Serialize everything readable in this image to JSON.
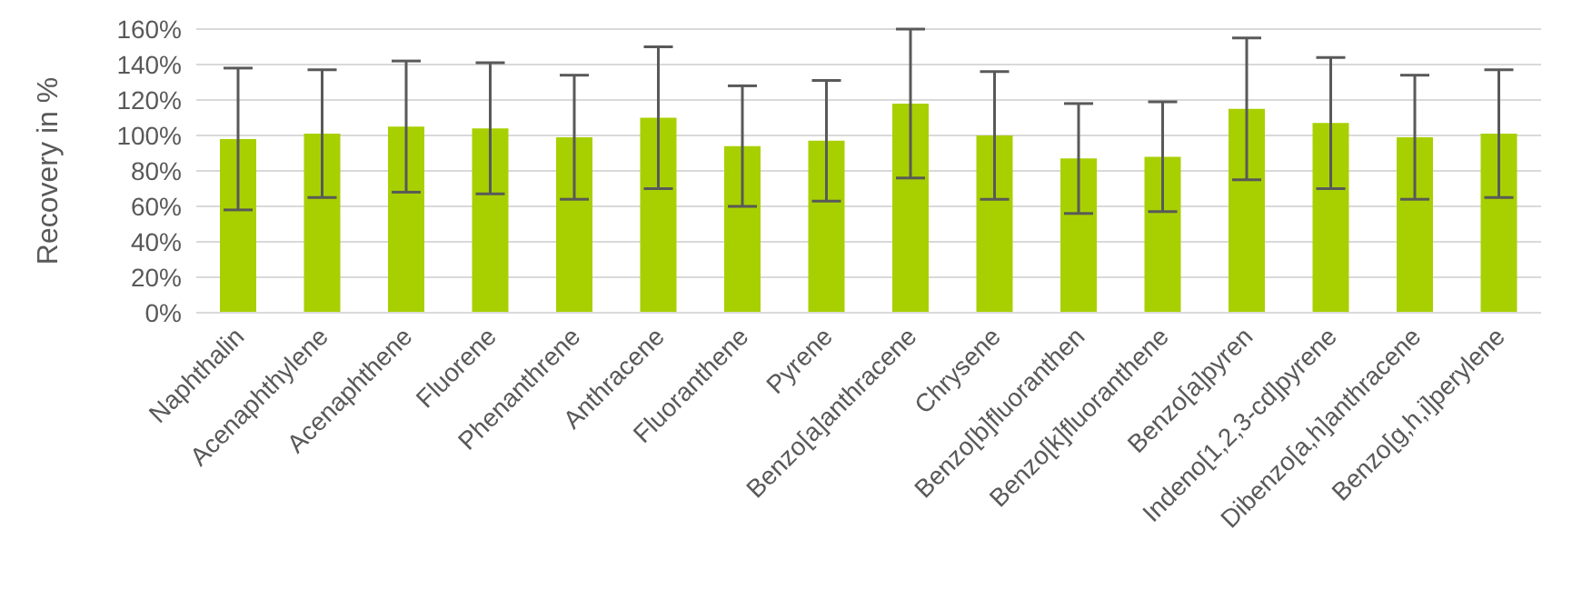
{
  "chart_data": {
    "type": "bar",
    "ylabel": "Recovery in %",
    "categories": [
      "Naphthalin",
      "Acenaphthylene",
      "Acenaphthene",
      "Fluorene",
      "Phenanthrene",
      "Anthracene",
      "Fluoranthene",
      "Pyrene",
      "Benzo[a]anthracene",
      "Chrysene",
      "Benzo[b]fluoranthen",
      "Benzo[k]fluoranthene",
      "Benzo[a]pyren",
      "Indeno[1,2,3-cd]pyrene",
      "Dibenzo[a,h]anthracene",
      "Benzo[g,h,i]perylene"
    ],
    "values": [
      98,
      101,
      105,
      104,
      99,
      110,
      94,
      97,
      118,
      100,
      87,
      88,
      115,
      107,
      99,
      101
    ],
    "errors": [
      40,
      36,
      37,
      37,
      35,
      40,
      34,
      34,
      42,
      36,
      31,
      31,
      40,
      37,
      35,
      36
    ],
    "color": "#a8d000",
    "ylim": [
      0,
      160
    ],
    "yticks": [
      {
        "value": 0,
        "label": "0%"
      },
      {
        "value": 20,
        "label": "20%"
      },
      {
        "value": 40,
        "label": "40%"
      },
      {
        "value": 60,
        "label": "60%"
      },
      {
        "value": 80,
        "label": "80%"
      },
      {
        "value": 100,
        "label": "100%"
      },
      {
        "value": 120,
        "label": "120%"
      },
      {
        "value": 140,
        "label": "140%"
      },
      {
        "value": 160,
        "label": "160%"
      }
    ],
    "grid": "y",
    "legend": false
  }
}
